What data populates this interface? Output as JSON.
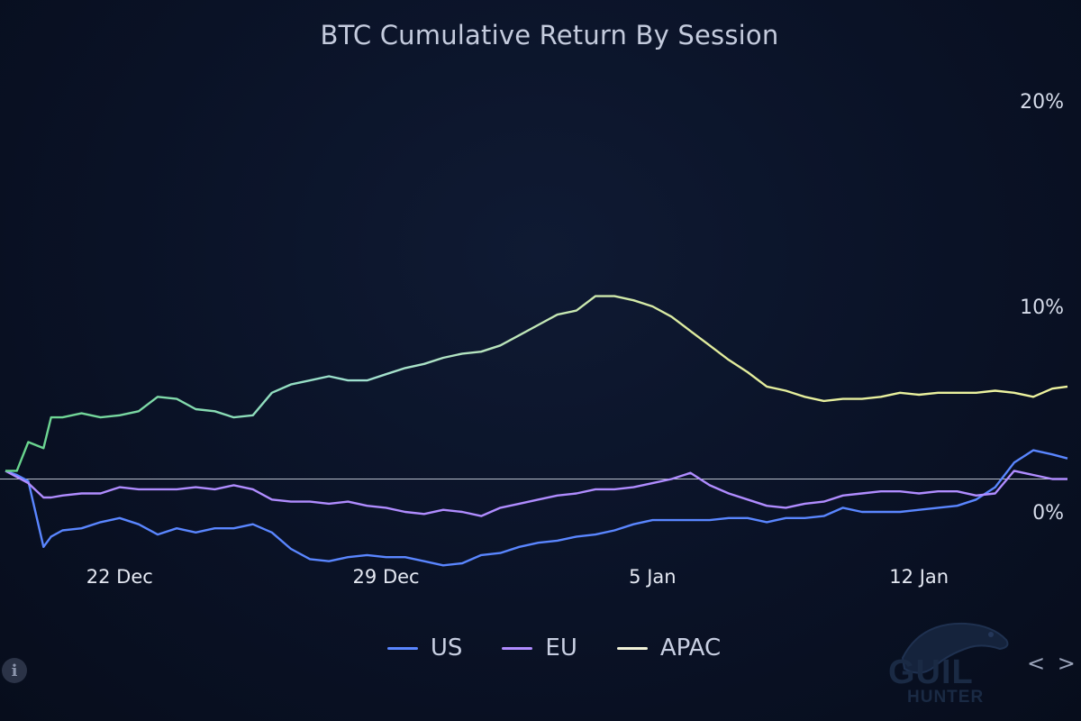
{
  "chart_data": {
    "type": "line",
    "title": "BTC Cumulative Return By Session",
    "y_ticks": [
      "20%",
      "10%",
      "0%"
    ],
    "x_ticks": [
      "22 Dec",
      "29 Dec",
      "5 Jan",
      "12 Jan"
    ],
    "x_tick_days": [
      3,
      10,
      17,
      24
    ],
    "ylim": [
      0,
      20
    ],
    "xlim": [
      0,
      27.9
    ],
    "baseline": 1.6,
    "legend": [
      "US",
      "EU",
      "APAC"
    ],
    "x": [
      0,
      0.3,
      0.6,
      1.0,
      1.2,
      1.5,
      2.0,
      2.5,
      3.0,
      3.5,
      4.0,
      4.5,
      5.0,
      5.5,
      6.0,
      6.5,
      7.0,
      7.5,
      8.0,
      8.5,
      9.0,
      9.5,
      10.0,
      10.5,
      11.0,
      11.5,
      12.0,
      12.5,
      13.0,
      13.5,
      14.0,
      14.5,
      15.0,
      15.5,
      16.0,
      16.5,
      17.0,
      17.5,
      18.0,
      18.5,
      19.0,
      19.5,
      20.0,
      20.5,
      21.0,
      21.5,
      22.0,
      22.5,
      23.0,
      23.5,
      24.0,
      24.5,
      25.0,
      25.5,
      26.0,
      26.5,
      27.0,
      27.5,
      27.9
    ],
    "series": [
      {
        "name": "US",
        "color": "#5a86ff",
        "values": [
          2.0,
          1.8,
          1.5,
          -1.7,
          -1.2,
          -0.9,
          -0.8,
          -0.5,
          -0.3,
          -0.6,
          -1.1,
          -0.8,
          -1.0,
          -0.8,
          -0.8,
          -0.6,
          -1.0,
          -1.8,
          -2.3,
          -2.4,
          -2.2,
          -2.1,
          -2.2,
          -2.2,
          -2.4,
          -2.6,
          -2.5,
          -2.1,
          -2.0,
          -1.7,
          -1.5,
          -1.4,
          -1.2,
          -1.1,
          -0.9,
          -0.6,
          -0.4,
          -0.4,
          -0.4,
          -0.4,
          -0.3,
          -0.3,
          -0.5,
          -0.3,
          -0.3,
          -0.2,
          0.2,
          0.0,
          0.0,
          0.0,
          0.1,
          0.2,
          0.3,
          0.6,
          1.2,
          2.4,
          3.0,
          2.8,
          2.6
        ]
      },
      {
        "name": "EU",
        "color": "#b08cff",
        "values": [
          2.0,
          1.7,
          1.4,
          0.7,
          0.7,
          0.8,
          0.9,
          0.9,
          1.2,
          1.1,
          1.1,
          1.1,
          1.2,
          1.1,
          1.3,
          1.1,
          0.6,
          0.5,
          0.5,
          0.4,
          0.5,
          0.3,
          0.2,
          0.0,
          -0.1,
          0.1,
          0.0,
          -0.2,
          0.2,
          0.4,
          0.6,
          0.8,
          0.9,
          1.1,
          1.1,
          1.2,
          1.4,
          1.6,
          1.9,
          1.3,
          0.9,
          0.6,
          0.3,
          0.2,
          0.4,
          0.5,
          0.8,
          0.9,
          1.0,
          1.0,
          0.9,
          1.0,
          1.0,
          0.8,
          0.9,
          2.0,
          1.8,
          1.6,
          1.6
        ]
      },
      {
        "name": "APAC",
        "color": "#e8ee9a",
        "values": [
          2.0,
          2.0,
          3.4,
          3.1,
          4.6,
          4.6,
          4.8,
          4.6,
          4.7,
          4.9,
          5.6,
          5.5,
          5.0,
          4.9,
          4.6,
          4.7,
          5.8,
          6.2,
          6.4,
          6.6,
          6.4,
          6.4,
          6.7,
          7.0,
          7.2,
          7.5,
          7.7,
          7.8,
          8.1,
          8.6,
          9.1,
          9.6,
          9.8,
          10.5,
          10.5,
          10.3,
          10.0,
          9.5,
          8.8,
          8.1,
          7.4,
          6.8,
          6.1,
          5.9,
          5.6,
          5.4,
          5.5,
          5.5,
          5.6,
          5.8,
          5.7,
          5.8,
          5.8,
          5.8,
          5.9,
          5.8,
          5.6,
          6.0,
          6.1
        ]
      }
    ],
    "gradient_stops": [
      "#66d48a",
      "#9fe0d0",
      "#e2ec9c",
      "#eef39e"
    ]
  },
  "legend": {
    "us": {
      "label": "US",
      "color": "#5a86ff"
    },
    "eu": {
      "label": "EU",
      "color": "#b08cff"
    },
    "apac": {
      "label": "APAC",
      "color": "#f2f2d8"
    }
  },
  "branding": {
    "logo_main": "GUIL",
    "logo_sub": "HUNTER",
    "info_glyph": "i",
    "nav_glyph": "< >"
  }
}
